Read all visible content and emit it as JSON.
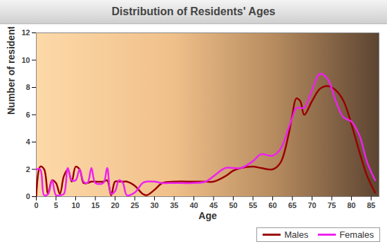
{
  "chart_data": {
    "type": "line",
    "title": "Distribution of Residents' Ages",
    "x_label": "Age",
    "y_label": "Number of residents",
    "x": [
      0,
      1,
      2,
      3,
      4,
      5,
      6,
      7,
      8,
      9,
      10,
      11,
      12,
      13,
      14,
      15,
      17,
      18,
      19,
      20,
      21,
      22,
      23,
      25,
      27,
      28,
      30,
      32,
      35,
      40,
      43,
      45,
      48,
      50,
      52,
      55,
      57,
      60,
      62,
      64,
      65,
      66,
      67,
      68,
      70,
      72,
      74,
      76,
      78,
      80,
      82,
      84,
      86
    ],
    "series": [
      {
        "name": "Males",
        "color": "#990000",
        "values": [
          0,
          2.2,
          2,
          0.2,
          1.2,
          1,
          0.2,
          1.5,
          2,
          1.1,
          2.2,
          2,
          1,
          1,
          1.1,
          1.1,
          1.1,
          1.2,
          0.1,
          1.1,
          1.1,
          1.1,
          1.1,
          0.8,
          0.2,
          0.1,
          0.5,
          1,
          1.1,
          1.1,
          1.1,
          1.1,
          1.5,
          1.9,
          2.1,
          2.2,
          2.1,
          2,
          2.5,
          4.5,
          6,
          7.2,
          7,
          6,
          7,
          7.9,
          8.1,
          7.8,
          7,
          5.3,
          3.3,
          1.5,
          0.3
        ]
      },
      {
        "name": "Females",
        "color": "#ee22ee",
        "values": [
          2,
          2,
          0.1,
          0.2,
          1.2,
          0.1,
          0.1,
          0.2,
          2.1,
          1.2,
          1.2,
          2,
          1.1,
          1,
          2.1,
          1,
          1,
          2.1,
          0.2,
          0.4,
          1.2,
          1,
          0.1,
          0.3,
          1,
          1.1,
          1.1,
          1,
          1,
          1,
          1.1,
          1.5,
          2.1,
          2.1,
          2.1,
          2.6,
          3.1,
          3,
          3.5,
          5,
          5.8,
          6.5,
          6.5,
          6.5,
          7.8,
          9,
          8.6,
          7,
          5.8,
          5.5,
          4.5,
          2.5,
          1.2
        ]
      }
    ],
    "xlim": [
      0,
      87
    ],
    "xticks": [
      0,
      5,
      10,
      15,
      20,
      25,
      30,
      35,
      40,
      45,
      50,
      55,
      60,
      65,
      70,
      75,
      80,
      85
    ],
    "ylim": [
      0,
      12
    ],
    "yticks": [
      0,
      2,
      4,
      6,
      8,
      10,
      12
    ],
    "grid": false,
    "legend": "bottom-right"
  }
}
